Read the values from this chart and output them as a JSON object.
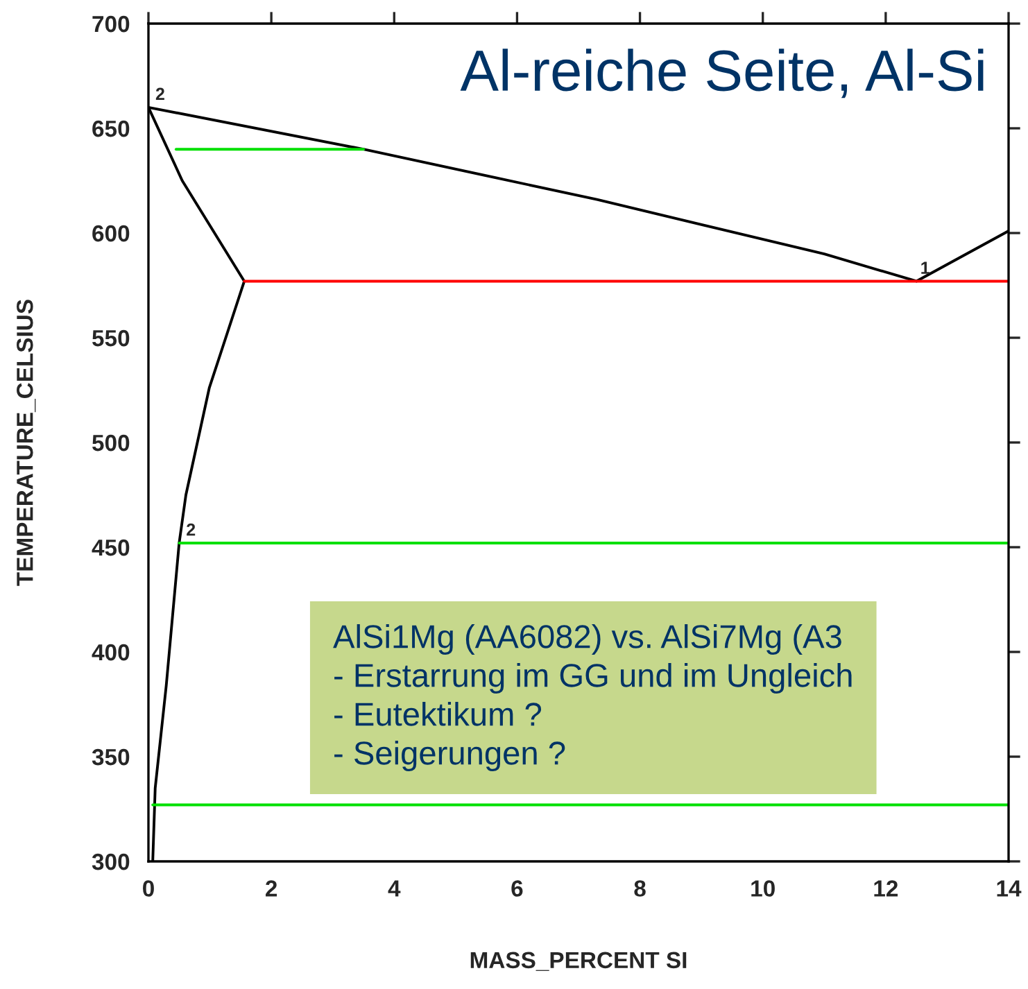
{
  "chart_data": {
    "type": "line",
    "title": "Al-reiche Seite, Al-Si",
    "xlabel": "MASS_PERCENT SI",
    "ylabel": "TEMPERATURE_CELSIUS",
    "xlim": [
      0,
      14
    ],
    "xticks": [
      0,
      2,
      4,
      6,
      8,
      10,
      12,
      14
    ],
    "ylim": [
      300,
      700
    ],
    "yticks": [
      300,
      350,
      400,
      450,
      500,
      550,
      600,
      650,
      700
    ],
    "grid": false,
    "legend": false,
    "marker": "none",
    "line_style": "solid",
    "series": [
      {
        "color": "#000000",
        "x": [
          0,
          3.5,
          7.3,
          11,
          12.5,
          14
        ],
        "values": [
          660,
          640,
          616,
          590,
          577,
          601
        ]
      },
      {
        "color": "#000000",
        "x": [
          0,
          0.55,
          1.56
        ],
        "values": [
          660,
          625,
          577
        ]
      },
      {
        "color": "#000000",
        "x": [
          1.56,
          0.99,
          0.61,
          0.5,
          0.29,
          0.11,
          0.07
        ],
        "values": [
          577,
          526,
          475,
          452,
          384,
          335,
          300
        ]
      },
      {
        "color": "#ff0000",
        "x": [
          1.56,
          14
        ],
        "values": [
          577,
          577
        ]
      },
      {
        "color": "#00e000",
        "x": [
          0.45,
          3.5
        ],
        "values": [
          640,
          640
        ]
      },
      {
        "color": "#00e000",
        "x": [
          0.5,
          14
        ],
        "values": [
          452,
          452
        ]
      },
      {
        "color": "#00e000",
        "x": [
          0.07,
          14
        ],
        "values": [
          327,
          327
        ]
      }
    ],
    "annotations": [
      {
        "text": "2",
        "x": 0.05,
        "y": 660
      },
      {
        "text": "2",
        "x": 0.55,
        "y": 452
      },
      {
        "text": "1",
        "x": 12.5,
        "y": 577
      },
      "AlSi1Mg (AA6082) vs. AlSi7Mg (A3\n- Erstarrung im GG und im Ungleich\n- Eutektikum ?\n- Seigerungen ?"
    ]
  }
}
